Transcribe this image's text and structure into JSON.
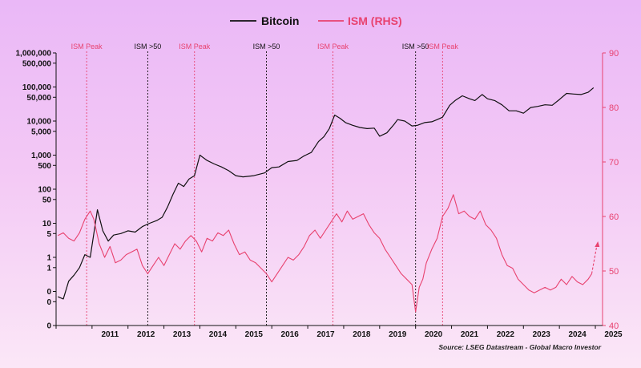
{
  "chart_data": {
    "type": "line",
    "legend": {
      "placement": "top-center"
    },
    "source": "Source: LSEG Datastream - Global Macro Investor",
    "x_ticks": [
      "2011",
      "2012",
      "2013",
      "2014",
      "2015",
      "2016",
      "2017",
      "2018",
      "2019",
      "2020",
      "2021",
      "2022",
      "2023",
      "2024",
      "2025"
    ],
    "x_range": [
      2010.0,
      2025.2
    ],
    "y_left": {
      "scale": "log",
      "range": [
        0.01,
        1000000
      ],
      "tick_values": [
        0.01,
        0.05,
        0.1,
        0.5,
        1,
        5,
        10,
        50,
        100,
        500,
        1000,
        5000,
        10000,
        50000,
        100000,
        500000,
        1000000
      ],
      "tick_labels": [
        "0",
        "0",
        "0",
        "1",
        "1",
        "5",
        "10",
        "50",
        "100",
        "500",
        "1,000",
        "5,000",
        "10,000",
        "50,000",
        "100,000",
        "500,000",
        "1,000,000"
      ]
    },
    "y_right": {
      "scale": "linear",
      "range": [
        40,
        90
      ],
      "ticks": [
        40,
        50,
        60,
        70,
        80,
        90
      ],
      "color": "#e8426f"
    },
    "annotations": [
      {
        "x": 2010.85,
        "label": "ISM Peak",
        "color": "#e8426f"
      },
      {
        "x": 2012.55,
        "label": "ISM >50",
        "color": "#111111"
      },
      {
        "x": 2013.85,
        "label": "ISM Peak",
        "color": "#e8426f"
      },
      {
        "x": 2015.85,
        "label": "ISM >50",
        "color": "#111111"
      },
      {
        "x": 2017.7,
        "label": "ISM Peak",
        "color": "#e8426f"
      },
      {
        "x": 2020.0,
        "label": "ISM >50",
        "color": "#111111"
      },
      {
        "x": 2020.75,
        "label": "ISM Peak",
        "color": "#e8426f"
      }
    ],
    "series": [
      {
        "name": "Bitcoin",
        "axis": "left",
        "color": "#111111",
        "x": [
          2010.05,
          2010.2,
          2010.35,
          2010.5,
          2010.65,
          2010.8,
          2010.95,
          2011.05,
          2011.15,
          2011.3,
          2011.45,
          2011.6,
          2011.8,
          2012.0,
          2012.2,
          2012.4,
          2012.6,
          2012.8,
          2012.95,
          2013.1,
          2013.25,
          2013.4,
          2013.55,
          2013.7,
          2013.85,
          2014.0,
          2014.2,
          2014.4,
          2014.6,
          2014.8,
          2015.0,
          2015.2,
          2015.5,
          2015.8,
          2016.0,
          2016.2,
          2016.45,
          2016.7,
          2016.9,
          2017.1,
          2017.3,
          2017.45,
          2017.6,
          2017.75,
          2017.9,
          2018.05,
          2018.25,
          2018.45,
          2018.65,
          2018.85,
          2019.0,
          2019.2,
          2019.4,
          2019.5,
          2019.7,
          2019.9,
          2020.05,
          2020.25,
          2020.45,
          2020.6,
          2020.75,
          2020.95,
          2021.1,
          2021.3,
          2021.5,
          2021.65,
          2021.85,
          2022.0,
          2022.2,
          2022.4,
          2022.6,
          2022.8,
          2023.0,
          2023.2,
          2023.4,
          2023.6,
          2023.8,
          2024.0,
          2024.2,
          2024.4,
          2024.6,
          2024.8,
          2024.95
        ],
        "values": [
          0.07,
          0.06,
          0.2,
          0.3,
          0.5,
          1.2,
          1.0,
          5.0,
          25.0,
          6.0,
          3.0,
          4.5,
          5.0,
          6.0,
          5.5,
          8.0,
          10.0,
          12.0,
          15.0,
          30.0,
          70.0,
          150.0,
          120.0,
          200.0,
          250.0,
          1000.0,
          700.0,
          550.0,
          450.0,
          350.0,
          250.0,
          230.0,
          250.0,
          300.0,
          430.0,
          450.0,
          650.0,
          700.0,
          950.0,
          1200.0,
          2500.0,
          3500.0,
          6000.0,
          15000.0,
          12000.0,
          9000.0,
          7500.0,
          6500.0,
          6000.0,
          6200.0,
          3600.0,
          4500.0,
          8000.0,
          11000.0,
          10000.0,
          7200.0,
          7500.0,
          9000.0,
          9500.0,
          11000.0,
          13000.0,
          29000.0,
          40000.0,
          55000.0,
          45000.0,
          40000.0,
          60000.0,
          45000.0,
          40000.0,
          30000.0,
          20000.0,
          20000.0,
          17000.0,
          25000.0,
          27000.0,
          30000.0,
          29000.0,
          43000.0,
          65000.0,
          62000.0,
          60000.0,
          70000.0,
          95000.0
        ]
      },
      {
        "name": "ISM (RHS)",
        "axis": "right",
        "color": "#e8426f",
        "x": [
          2010.05,
          2010.2,
          2010.35,
          2010.5,
          2010.65,
          2010.8,
          2010.95,
          2011.05,
          2011.2,
          2011.35,
          2011.5,
          2011.65,
          2011.8,
          2011.95,
          2012.1,
          2012.25,
          2012.4,
          2012.55,
          2012.7,
          2012.85,
          2013.0,
          2013.15,
          2013.3,
          2013.45,
          2013.6,
          2013.75,
          2013.9,
          2014.05,
          2014.2,
          2014.35,
          2014.5,
          2014.65,
          2014.8,
          2014.95,
          2015.1,
          2015.25,
          2015.4,
          2015.55,
          2015.7,
          2015.85,
          2016.0,
          2016.15,
          2016.3,
          2016.45,
          2016.6,
          2016.75,
          2016.9,
          2017.05,
          2017.2,
          2017.35,
          2017.5,
          2017.65,
          2017.8,
          2017.95,
          2018.1,
          2018.25,
          2018.4,
          2018.55,
          2018.7,
          2018.85,
          2019.0,
          2019.15,
          2019.3,
          2019.45,
          2019.6,
          2019.75,
          2019.9,
          2020.0,
          2020.1,
          2020.2,
          2020.3,
          2020.45,
          2020.6,
          2020.75,
          2020.9,
          2021.05,
          2021.2,
          2021.35,
          2021.5,
          2021.65,
          2021.8,
          2021.95,
          2022.1,
          2022.25,
          2022.4,
          2022.55,
          2022.7,
          2022.85,
          2023.0,
          2023.15,
          2023.3,
          2023.45,
          2023.6,
          2023.75,
          2023.9,
          2024.05,
          2024.2,
          2024.35,
          2024.5,
          2024.65,
          2024.8,
          2024.9
        ],
        "values": [
          56.5,
          57.0,
          56.0,
          55.5,
          57.0,
          59.5,
          61.0,
          59.5,
          55.0,
          52.5,
          54.5,
          51.5,
          52.0,
          53.0,
          53.5,
          54.0,
          51.0,
          49.5,
          51.0,
          52.5,
          51.0,
          53.0,
          55.0,
          54.0,
          55.5,
          56.5,
          55.5,
          53.5,
          56.0,
          55.5,
          57.0,
          56.5,
          57.5,
          55.0,
          53.0,
          53.5,
          52.0,
          51.5,
          50.5,
          49.5,
          48.0,
          49.5,
          51.0,
          52.5,
          52.0,
          53.0,
          54.5,
          56.5,
          57.5,
          56.0,
          57.5,
          59.0,
          60.5,
          59.0,
          61.0,
          59.5,
          60.0,
          60.5,
          58.5,
          57.0,
          56.0,
          54.0,
          52.5,
          51.0,
          49.5,
          48.5,
          47.5,
          42.5,
          47.0,
          48.5,
          51.5,
          54.0,
          56.0,
          60.0,
          61.5,
          64.0,
          60.5,
          61.0,
          60.0,
          59.5,
          61.0,
          58.5,
          57.5,
          56.0,
          53.0,
          51.0,
          50.5,
          48.5,
          47.5,
          46.5,
          46.0,
          46.5,
          47.0,
          46.5,
          47.0,
          48.5,
          47.5,
          49.0,
          48.0,
          47.5,
          48.5,
          49.5
        ]
      },
      {
        "name": "",
        "axis": "right",
        "style": "dashed",
        "color": "#e8426f",
        "x": [
          2024.9,
          2025.05
        ],
        "values": [
          49.5,
          55.0
        ]
      }
    ]
  }
}
